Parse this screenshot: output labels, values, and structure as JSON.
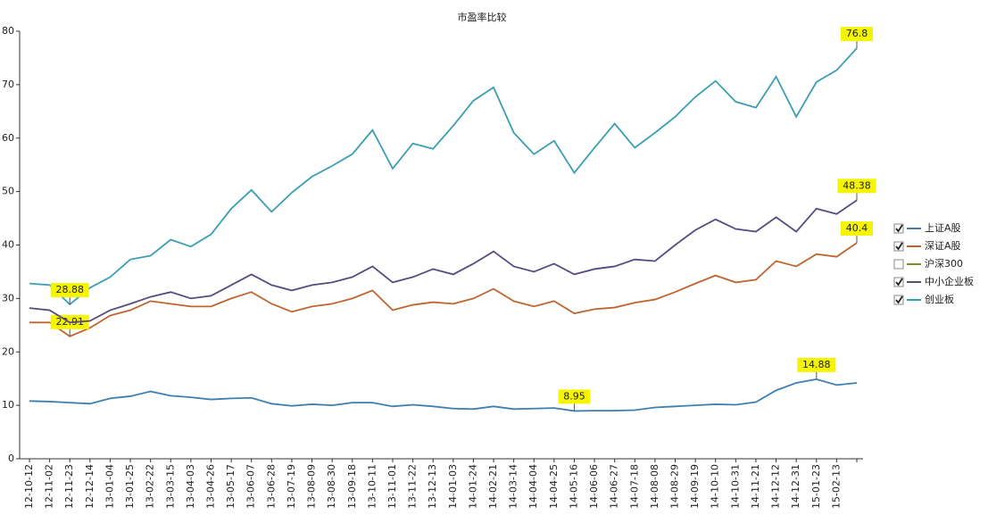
{
  "chart_data": {
    "type": "line",
    "title": "市盈率比较",
    "categories": [
      "12-10-12",
      "12-11-02",
      "12-11-23",
      "12-12-14",
      "13-01-04",
      "13-01-25",
      "13-02-22",
      "13-03-15",
      "13-04-03",
      "13-04-26",
      "13-05-17",
      "13-06-07",
      "13-06-28",
      "13-07-19",
      "13-08-09",
      "13-08-30",
      "13-09-18",
      "13-10-11",
      "13-11-01",
      "13-11-22",
      "13-12-13",
      "14-01-03",
      "14-01-24",
      "14-02-21",
      "14-03-14",
      "14-04-04",
      "14-04-25",
      "14-05-16",
      "14-06-06",
      "14-06-27",
      "14-07-18",
      "14-08-08",
      "14-08-29",
      "14-09-19",
      "14-10-10",
      "14-10-31",
      "14-11-21",
      "14-12-12",
      "14-12-31",
      "15-01-23",
      "15-02-13",
      null
    ],
    "ylim": [
      0,
      80
    ],
    "yticks": [
      0,
      10,
      20,
      30,
      40,
      50,
      60,
      70,
      80
    ],
    "grid": false,
    "series": [
      {
        "name": "上证A股",
        "color": "#3f7fb0",
        "checked": true,
        "values": [
          10.8,
          10.7,
          10.5,
          10.3,
          11.3,
          11.7,
          12.6,
          11.8,
          11.5,
          11.1,
          11.3,
          11.4,
          10.3,
          9.9,
          10.2,
          10,
          10.5,
          10.5,
          9.8,
          10.1,
          9.8,
          9.4,
          9.3,
          9.8,
          9.3,
          9.4,
          9.5,
          8.95,
          9,
          9,
          9.1,
          9.6,
          9.8,
          10,
          10.2,
          10.1,
          10.6,
          12.8,
          14.2,
          14.88,
          13.8,
          14.2
        ],
        "value_labels": [
          null,
          null,
          null,
          null,
          null,
          null,
          null,
          null,
          null,
          null,
          null,
          null,
          null,
          null,
          null,
          null,
          null,
          null,
          null,
          null,
          null,
          null,
          null,
          null,
          null,
          null,
          null,
          "8.95",
          null,
          null,
          null,
          null,
          null,
          null,
          null,
          null,
          null,
          null,
          null,
          "14.88",
          null,
          null
        ]
      },
      {
        "name": "深证A股",
        "color": "#c0652f",
        "checked": true,
        "values": [
          25.5,
          25.5,
          22.91,
          24.5,
          26.8,
          27.8,
          29.5,
          29,
          28.5,
          28.5,
          30,
          31.2,
          29,
          27.5,
          28.5,
          29,
          30,
          31.5,
          27.8,
          28.8,
          29.3,
          29,
          30,
          31.8,
          29.5,
          28.5,
          29.5,
          27.2,
          28,
          28.3,
          29.2,
          29.8,
          31.2,
          32.8,
          34.3,
          33,
          33.5,
          37,
          36,
          38.3,
          37.8,
          40.4
        ],
        "value_labels": [
          null,
          null,
          "22.91",
          null,
          null,
          null,
          null,
          null,
          null,
          null,
          null,
          null,
          null,
          null,
          null,
          null,
          null,
          null,
          null,
          null,
          null,
          null,
          null,
          null,
          null,
          null,
          null,
          null,
          null,
          null,
          null,
          null,
          null,
          null,
          null,
          null,
          null,
          null,
          null,
          null,
          null,
          "40.4"
        ]
      },
      {
        "name": "沪深300",
        "color": "#8d8a2e",
        "checked": false,
        "values": null
      },
      {
        "name": "中小企业板",
        "color": "#5a4a82",
        "checked": true,
        "values": [
          28.2,
          27.8,
          25.5,
          25.8,
          27.8,
          29,
          30.3,
          31.2,
          30,
          30.5,
          32.5,
          34.5,
          32.5,
          31.5,
          32.5,
          33,
          34,
          36,
          33,
          34,
          35.5,
          34.5,
          36.5,
          38.8,
          36,
          35,
          36.5,
          34.5,
          35.5,
          36,
          37.3,
          37,
          40,
          42.8,
          44.8,
          43,
          42.5,
          45.2,
          42.5,
          46.8,
          45.8,
          48.38
        ],
        "value_labels": [
          null,
          null,
          null,
          null,
          null,
          null,
          null,
          null,
          null,
          null,
          null,
          null,
          null,
          null,
          null,
          null,
          null,
          null,
          null,
          null,
          null,
          null,
          null,
          null,
          null,
          null,
          null,
          null,
          null,
          null,
          null,
          null,
          null,
          null,
          null,
          null,
          null,
          null,
          null,
          null,
          null,
          "48.38"
        ]
      },
      {
        "name": "创业板",
        "color": "#3a9fb2",
        "checked": true,
        "values": [
          32.8,
          32.5,
          28.88,
          32,
          34,
          37.3,
          38,
          41,
          39.7,
          42,
          46.8,
          50.3,
          46.2,
          49.8,
          52.8,
          54.8,
          57,
          61.5,
          54.3,
          59,
          58,
          62.3,
          67,
          69.5,
          61,
          57,
          59.5,
          53.5,
          58.2,
          62.7,
          58.2,
          61,
          64,
          67.7,
          70.7,
          66.8,
          65.7,
          71.5,
          64,
          70.5,
          72.7,
          76.8
        ],
        "value_labels": [
          null,
          null,
          "28.88",
          null,
          null,
          null,
          null,
          null,
          null,
          null,
          null,
          null,
          null,
          null,
          null,
          null,
          null,
          null,
          null,
          null,
          null,
          null,
          null,
          null,
          null,
          null,
          null,
          null,
          null,
          null,
          null,
          null,
          null,
          null,
          null,
          null,
          null,
          null,
          null,
          null,
          null,
          "76.8"
        ]
      }
    ]
  }
}
